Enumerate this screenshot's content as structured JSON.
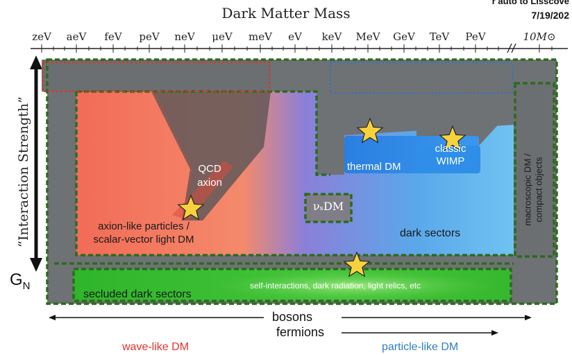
{
  "header": {
    "title": "Dark Matter Mass",
    "corner_partial": "r auto to Lisscove",
    "corner_date": "7/19/202"
  },
  "mass_scale": {
    "ticks": [
      "zeV",
      "aeV",
      "feV",
      "peV",
      "neV",
      "μeV",
      "meV",
      "eV",
      "keV",
      "MeV",
      "GeV",
      "TeV",
      "PeV",
      "10M⊙"
    ]
  },
  "y_axis": {
    "label": "“Interaction Strength”",
    "bottom_label": "G",
    "bottom_sub": "N"
  },
  "regions": {
    "qcd_axion": "QCD axion",
    "alp_line1": "axion-like particles /",
    "alp_line2": "scalar-vector light DM",
    "nus_dm": "νₛDM",
    "thermal_dm": "thermal DM",
    "classic_wimp": "classic WIMP",
    "dark_sectors": "dark sectors",
    "macroscopic_line1": "macroscopic DM /",
    "macroscopic_line2": "compact objects",
    "secluded": "secluded dark sectors",
    "self_interactions": "self-interactions, dark radiation, light relics, etc"
  },
  "footer": {
    "bosons": "bosons",
    "fermions": "fermions",
    "wave_like": "wave-like DM",
    "particle_like": "particle-like DM"
  },
  "colors": {
    "wave": "#e8312a",
    "particle": "#2f7ec1",
    "alp": "#f16d5c",
    "thermal": "#2f8fe8",
    "green": "#3dc12b",
    "gray": "#6d7072",
    "star": "#f7d23c"
  },
  "icons": {
    "star": "star-icon",
    "arrow": "arrow-icon"
  }
}
